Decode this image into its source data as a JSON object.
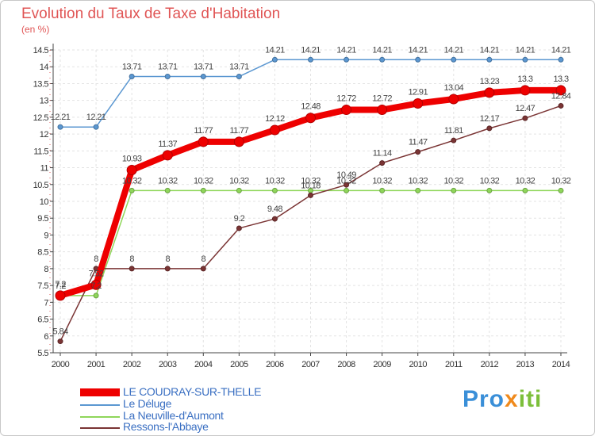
{
  "header": {
    "title": "Evolution du Taux de Taxe d'Habitation",
    "subtitle": "(en %)"
  },
  "logo": {
    "part1": "Pro",
    "part2": "x",
    "part3": "iti"
  },
  "chart_data": {
    "type": "line",
    "title": "Evolution du Taux de Taxe d'Habitation",
    "ylabel": "(en %)",
    "xlabel": "",
    "x": [
      "2000",
      "2001",
      "2002",
      "2003",
      "2004",
      "2005",
      "2006",
      "2007",
      "2008",
      "2009",
      "2010",
      "2011",
      "2012",
      "2013",
      "2014"
    ],
    "ylim": [
      5.5,
      14.5
    ],
    "yticks": [
      "5.5",
      "6",
      "6.5",
      "7",
      "7.5",
      "8",
      "8.5",
      "9",
      "9.5",
      "10",
      "10.5",
      "11",
      "11.5",
      "12",
      "12.5",
      "13",
      "13.5",
      "14",
      "14.5"
    ],
    "grid": true,
    "legend": "bottom-left",
    "series": [
      {
        "name": "Le Déluge",
        "color": "#5b97d1",
        "values": [
          12.21,
          12.21,
          13.71,
          13.71,
          13.71,
          13.71,
          14.21,
          14.21,
          14.21,
          14.21,
          14.21,
          14.21,
          14.21,
          14.21,
          14.21
        ],
        "labels": [
          "12.21",
          "12.21",
          "13.71",
          "13.71",
          "13.71",
          "13.71",
          "14.21",
          "14.21",
          "14.21",
          "14.21",
          "14.21",
          "14.21",
          "14.21",
          "14.21",
          "14.21"
        ]
      },
      {
        "name": "La Neuville-d'Aumont",
        "color": "#8fd65a",
        "values": [
          7.2,
          7.2,
          10.32,
          10.32,
          10.32,
          10.32,
          10.32,
          10.32,
          10.32,
          10.32,
          10.32,
          10.32,
          10.32,
          10.32,
          10.32
        ],
        "labels": [
          "7.2",
          "7.2",
          "10.32",
          "10.32",
          "10.32",
          "10.32",
          "10.32",
          "10.32",
          "10.32",
          "10.32",
          "10.32",
          "10.32",
          "10.32",
          "10.32",
          "10.32"
        ]
      },
      {
        "name": "Ressons-l'Abbaye",
        "color": "#7a3434",
        "values": [
          5.84,
          8,
          8,
          8,
          8,
          9.2,
          9.48,
          10.18,
          10.49,
          11.14,
          11.47,
          11.81,
          12.17,
          12.47,
          12.84
        ],
        "labels": [
          "5.84",
          "8",
          "8",
          "8",
          "8",
          "9.2",
          "9.48",
          "10.18",
          "10.49",
          "11.14",
          "11.47",
          "11.81",
          "12.17",
          "12.47",
          "12.84"
        ]
      },
      {
        "name": "LE COUDRAY-SUR-THELLE",
        "color": "#ee0000",
        "values": [
          7.2,
          7.52,
          10.93,
          11.37,
          11.77,
          11.77,
          12.12,
          12.48,
          12.72,
          12.72,
          12.91,
          13.04,
          13.23,
          13.3,
          13.3
        ],
        "labels": [
          "7.2",
          "7.52",
          "10.93",
          "11.37",
          "11.77",
          "11.77",
          "12.12",
          "12.48",
          "12.72",
          "12.72",
          "12.91",
          "13.04",
          "13.23",
          "13.3",
          "13.3"
        ]
      }
    ],
    "legend_entries": [
      {
        "label": "LE COUDRAY-SUR-THELLE",
        "color": "#ee0000",
        "weight": "thick"
      },
      {
        "label": "Le Déluge",
        "color": "#5b97d1",
        "weight": "thin"
      },
      {
        "label": "La Neuville-d'Aumont",
        "color": "#8fd65a",
        "weight": "thin"
      },
      {
        "label": "Ressons-l'Abbaye",
        "color": "#7a3434",
        "weight": "thin"
      }
    ]
  }
}
